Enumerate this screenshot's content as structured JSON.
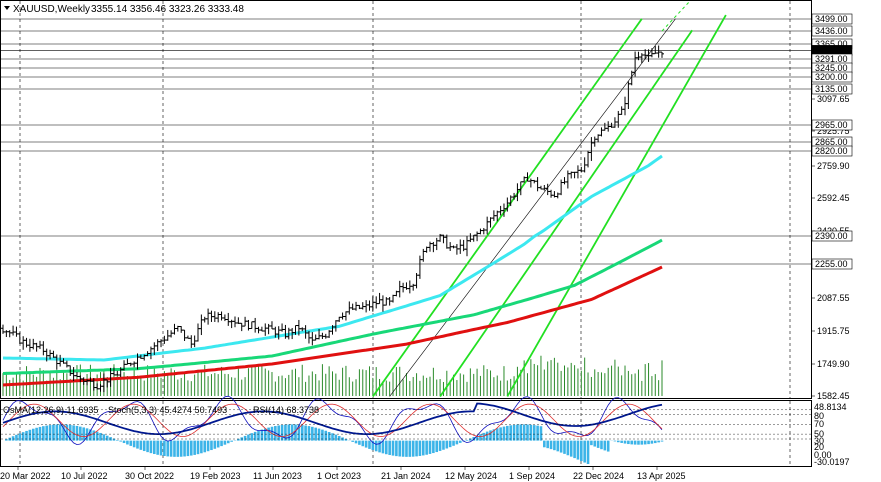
{
  "header": {
    "symbol": "XAUUSD,Weekly",
    "ohlc": "3355.14 3356.46 3323.26 3333.48"
  },
  "indicator_header": {
    "osma": "OsMA(12,26,9) 11.6935",
    "stoch": "Stoch(5,3,3) 45.4274 50.7493",
    "rsi": "RSI(14) 68.3738"
  },
  "chart_data": {
    "type": "line",
    "title": "XAUUSD,Weekly",
    "x_ticks": [
      "20 Mar 2022",
      "10 Jul 2022",
      "30 Oct 2022",
      "19 Feb 2023",
      "11 Jun 2023",
      "1 Oct 2023",
      "21 Jan 2024",
      "12 May 2024",
      "1 Sep 2024",
      "22 Dec 2024",
      "13 Apr 2025"
    ],
    "y_ticks": [
      "3097.65",
      "2925.75",
      "2759.90",
      "2592.45",
      "2420.55",
      "2087.55",
      "1915.75",
      "1749.90",
      "1582.45"
    ],
    "ylim": [
      1582.45,
      3499.0
    ],
    "price_levels": [
      {
        "value": 3499.0,
        "label": "3499.00"
      },
      {
        "value": 3436.0,
        "label": "3436.00"
      },
      {
        "value": 3365.0,
        "label": "3365.00"
      },
      {
        "value": 3333.48,
        "label": "3333.48"
      },
      {
        "value": 3291.0,
        "label": "3291.00"
      },
      {
        "value": 3245.0,
        "label": "3245.00"
      },
      {
        "value": 3200.0,
        "label": "3200.00"
      },
      {
        "value": 3135.0,
        "label": "3135.00"
      },
      {
        "value": 2965.0,
        "label": "2965.00"
      },
      {
        "value": 2865.0,
        "label": "2865.00"
      },
      {
        "value": 2820.0,
        "label": "2820.00"
      },
      {
        "value": 2390.0,
        "label": "2390.00"
      },
      {
        "value": 2255.0,
        "label": "2255.00"
      }
    ],
    "anchors": [
      [
        0,
        1930
      ],
      [
        6,
        1860
      ],
      [
        12,
        1820
      ],
      [
        18,
        1740
      ],
      [
        22,
        1680
      ],
      [
        28,
        1640
      ],
      [
        34,
        1700
      ],
      [
        38,
        1760
      ],
      [
        44,
        1830
      ],
      [
        48,
        1880
      ],
      [
        52,
        1930
      ],
      [
        56,
        1850
      ],
      [
        60,
        1990
      ],
      [
        65,
        2000
      ],
      [
        70,
        1960
      ],
      [
        75,
        1940
      ],
      [
        80,
        1920
      ],
      [
        84,
        1900
      ],
      [
        88,
        1935
      ],
      [
        92,
        1860
      ],
      [
        96,
        1900
      ],
      [
        100,
        2000
      ],
      [
        104,
        2030
      ],
      [
        108,
        2040
      ],
      [
        112,
        2070
      ],
      [
        115,
        2060
      ],
      [
        118,
        2130
      ],
      [
        122,
        2170
      ],
      [
        126,
        2350
      ],
      [
        130,
        2380
      ],
      [
        134,
        2320
      ],
      [
        138,
        2350
      ],
      [
        142,
        2420
      ],
      [
        146,
        2500
      ],
      [
        150,
        2570
      ],
      [
        154,
        2660
      ],
      [
        156,
        2700
      ],
      [
        160,
        2640
      ],
      [
        164,
        2610
      ],
      [
        168,
        2700
      ],
      [
        172,
        2740
      ],
      [
        176,
        2900
      ],
      [
        180,
        2950
      ],
      [
        184,
        3030
      ],
      [
        186,
        3150
      ],
      [
        188,
        3300
      ],
      [
        190,
        3330
      ],
      [
        192,
        3290
      ],
      [
        194,
        3320
      ],
      [
        196,
        3333.48
      ]
    ],
    "series": [
      {
        "name": "",
        "color": "#3ce8f0",
        "values": [
          [
            0,
            1780
          ],
          [
            30,
            1770
          ],
          [
            60,
            1830
          ],
          [
            100,
            1940
          ],
          [
            130,
            2100
          ],
          [
            155,
            2350
          ],
          [
            175,
            2600
          ],
          [
            196,
            2800
          ]
        ]
      },
      {
        "name": "",
        "color": "#18d878",
        "values": [
          [
            0,
            1700
          ],
          [
            40,
            1725
          ],
          [
            80,
            1790
          ],
          [
            110,
            1900
          ],
          [
            140,
            2000
          ],
          [
            170,
            2150
          ],
          [
            196,
            2370
          ]
        ]
      },
      {
        "name": "",
        "color": "#e01010",
        "values": [
          [
            0,
            1640
          ],
          [
            40,
            1680
          ],
          [
            80,
            1750
          ],
          [
            120,
            1850
          ],
          [
            150,
            1960
          ],
          [
            175,
            2080
          ],
          [
            196,
            2240
          ]
        ]
      }
    ],
    "channels": [
      {
        "color": "#22e022",
        "points": [
          [
            [
              110,
              1580
            ],
            [
              190,
              3500
            ]
          ],
          [
            [
              130,
              1580
            ],
            [
              205,
              3440
            ]
          ],
          [
            [
              150,
              1580
            ],
            [
              215,
              3520
            ]
          ]
        ]
      },
      {
        "color": "#000000",
        "points": [
          [
            [
              115,
              1580
            ],
            [
              200,
              3500
            ]
          ]
        ]
      }
    ],
    "indicator_ticks": [
      "48.8134",
      "80",
      "70",
      "50",
      "30",
      "20",
      "0.00",
      "-30.0197"
    ],
    "indicator_range": [
      -30.0197,
      48.8134
    ]
  }
}
